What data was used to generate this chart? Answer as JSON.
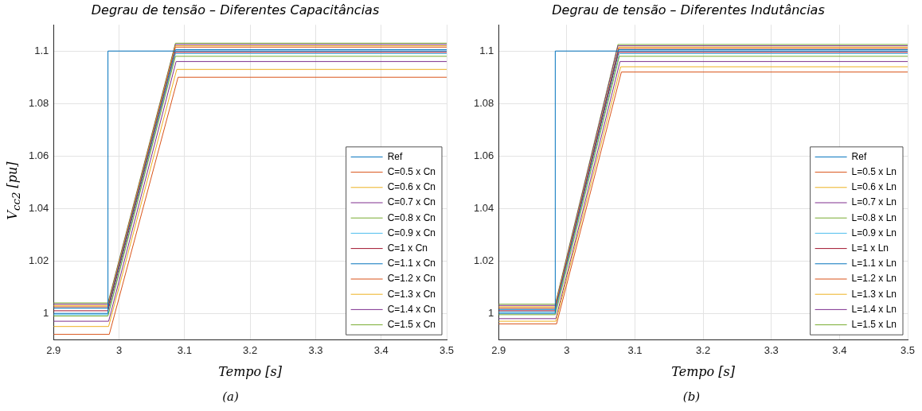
{
  "chart_data": [
    {
      "type": "line",
      "title": "Degrau de tensão – Diferentes Capacitâncias",
      "xlabel": "Tempo [s]",
      "ylabel": "V$_{cc2}$ [pu]",
      "annotations": [
        "(a)"
      ],
      "xlim": [
        2.9,
        3.5
      ],
      "xticks": [
        2.9,
        3,
        3.1,
        3.2,
        3.3,
        3.4,
        3.5
      ],
      "ylim": [
        0.99,
        1.11
      ],
      "yticks": [
        1,
        1.02,
        1.04,
        1.06,
        1.08,
        1.1
      ],
      "grid": true,
      "legend": "bottom right",
      "marker": "none",
      "line_style": "solid",
      "series": [
        {
          "name": "Ref",
          "color": "#0072bd",
          "x": [
            2.9,
            2.983,
            2.983,
            3.5
          ],
          "values": [
            1,
            1,
            1.1,
            1.1
          ]
        },
        {
          "name": "C=0.5 x Cn",
          "color": "#d95319",
          "x": [
            2.9,
            2.985,
            3.09,
            3.5
          ],
          "values": [
            0.992,
            0.992,
            1.09,
            1.09
          ]
        },
        {
          "name": "C=0.6 x Cn",
          "color": "#edb120",
          "x": [
            2.9,
            2.984,
            3.088,
            3.5
          ],
          "values": [
            0.995,
            0.995,
            1.093,
            1.093
          ]
        },
        {
          "name": "C=0.7 x Cn",
          "color": "#7e2f8e",
          "x": [
            2.9,
            2.984,
            3.087,
            3.5
          ],
          "values": [
            0.997,
            0.997,
            1.096,
            1.096
          ]
        },
        {
          "name": "C=0.8 x Cn",
          "color": "#77ac30",
          "x": [
            2.9,
            2.983,
            3.086,
            3.5
          ],
          "values": [
            0.999,
            0.999,
            1.098,
            1.098
          ]
        },
        {
          "name": "C=0.9 x Cn",
          "color": "#4dbeee",
          "x": [
            2.9,
            2.983,
            3.086,
            3.5
          ],
          "values": [
            0.9995,
            0.9995,
            1.099,
            1.099
          ]
        },
        {
          "name": "C=1 x Cn",
          "color": "#a2142f",
          "x": [
            2.9,
            2.983,
            3.086,
            3.5
          ],
          "values": [
            1.001,
            1.001,
            1.0995,
            1.0995
          ]
        },
        {
          "name": "C=1.1 x Cn",
          "color": "#0072bd",
          "x": [
            2.9,
            2.983,
            3.086,
            3.5
          ],
          "values": [
            1.002,
            1.002,
            1.1005,
            1.1005
          ]
        },
        {
          "name": "C=1.2 x Cn",
          "color": "#d95319",
          "x": [
            2.9,
            2.983,
            3.086,
            3.5
          ],
          "values": [
            1.0025,
            1.0025,
            1.1015,
            1.1015
          ]
        },
        {
          "name": "C=1.3 x Cn",
          "color": "#edb120",
          "x": [
            2.9,
            2.983,
            3.086,
            3.5
          ],
          "values": [
            1.003,
            1.003,
            1.102,
            1.102
          ]
        },
        {
          "name": "C=1.4 x Cn",
          "color": "#7e2f8e",
          "x": [
            2.9,
            2.983,
            3.086,
            3.5
          ],
          "values": [
            1.0035,
            1.0035,
            1.1025,
            1.1025
          ]
        },
        {
          "name": "C=1.5 x Cn",
          "color": "#77ac30",
          "x": [
            2.9,
            2.983,
            3.086,
            3.5
          ],
          "values": [
            1.004,
            1.004,
            1.103,
            1.103
          ]
        }
      ]
    },
    {
      "type": "line",
      "title": "Degrau de tensão – Diferentes Indutâncias",
      "xlabel": "Tempo [s]",
      "annotations": [
        "(b)"
      ],
      "xlim": [
        2.9,
        3.5
      ],
      "xticks": [
        2.9,
        3,
        3.1,
        3.2,
        3.3,
        3.4,
        3.5
      ],
      "ylim": [
        0.99,
        1.11
      ],
      "yticks": [
        1,
        1.02,
        1.04,
        1.06,
        1.08,
        1.1
      ],
      "grid": true,
      "legend": "bottom right",
      "marker": "none",
      "line_style": "solid",
      "series": [
        {
          "name": "Ref",
          "color": "#0072bd",
          "x": [
            2.9,
            2.983,
            2.983,
            3.5
          ],
          "values": [
            1,
            1,
            1.1,
            1.1
          ]
        },
        {
          "name": "L=0.5 x Ln",
          "color": "#d95319",
          "x": [
            2.9,
            2.985,
            3.08,
            3.5
          ],
          "values": [
            0.996,
            0.996,
            1.092,
            1.092
          ]
        },
        {
          "name": "L=0.6 x Ln",
          "color": "#edb120",
          "x": [
            2.9,
            2.984,
            3.079,
            3.5
          ],
          "values": [
            0.997,
            0.997,
            1.094,
            1.094
          ]
        },
        {
          "name": "L=0.7 x Ln",
          "color": "#7e2f8e",
          "x": [
            2.9,
            2.984,
            3.078,
            3.5
          ],
          "values": [
            0.998,
            0.998,
            1.096,
            1.096
          ]
        },
        {
          "name": "L=0.8 x Ln",
          "color": "#77ac30",
          "x": [
            2.9,
            2.983,
            3.077,
            3.5
          ],
          "values": [
            0.9995,
            0.9995,
            1.098,
            1.098
          ]
        },
        {
          "name": "L=0.9 x Ln",
          "color": "#4dbeee",
          "x": [
            2.9,
            2.983,
            3.077,
            3.5
          ],
          "values": [
            1.0005,
            1.0005,
            1.099,
            1.099
          ]
        },
        {
          "name": "L=1 x Ln",
          "color": "#a2142f",
          "x": [
            2.9,
            2.983,
            3.076,
            3.5
          ],
          "values": [
            1.001,
            1.001,
            1.0995,
            1.0995
          ]
        },
        {
          "name": "L=1.1 x Ln",
          "color": "#0072bd",
          "x": [
            2.9,
            2.983,
            3.076,
            3.5
          ],
          "values": [
            1.0015,
            1.0015,
            1.1005,
            1.1005
          ]
        },
        {
          "name": "L=1.2 x Ln",
          "color": "#d95319",
          "x": [
            2.9,
            2.983,
            3.076,
            3.5
          ],
          "values": [
            1.002,
            1.002,
            1.101,
            1.101
          ]
        },
        {
          "name": "L=1.3 x Ln",
          "color": "#edb120",
          "x": [
            2.9,
            2.983,
            3.076,
            3.5
          ],
          "values": [
            1.0025,
            1.0025,
            1.1015,
            1.1015
          ]
        },
        {
          "name": "L=1.4 x Ln",
          "color": "#7e2f8e",
          "x": [
            2.9,
            2.983,
            3.075,
            3.5
          ],
          "values": [
            1.003,
            1.003,
            1.102,
            1.102
          ]
        },
        {
          "name": "L=1.5 x Ln",
          "color": "#77ac30",
          "x": [
            2.9,
            2.983,
            3.075,
            3.5
          ],
          "values": [
            1.0035,
            1.0035,
            1.1025,
            1.1025
          ]
        }
      ]
    }
  ]
}
